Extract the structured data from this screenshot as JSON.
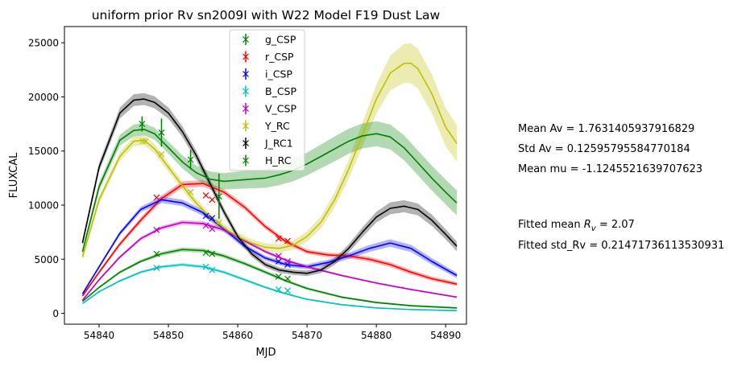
{
  "chart_data": {
    "type": "line",
    "title": "uniform prior Rv sn2009I with W22 Model F19 Dust Law",
    "xlabel": "MJD",
    "ylabel": "FLUXCAL",
    "xlim": [
      54835,
      54893
    ],
    "ylim": [
      -1000,
      26500
    ],
    "xticks": [
      54840,
      54850,
      54860,
      54870,
      54880,
      54890
    ],
    "yticks": [
      0,
      5000,
      10000,
      15000,
      20000,
      25000
    ],
    "grid": false,
    "legend_position": "top-center",
    "legend": [
      {
        "label": "g_CSP",
        "color": "#008000"
      },
      {
        "label": "r_CSP",
        "color": "#ff0000"
      },
      {
        "label": "i_CSP",
        "color": "#0000ff"
      },
      {
        "label": "B_CSP",
        "color": "#00bfbf"
      },
      {
        "label": "V_CSP",
        "color": "#bf00bf"
      },
      {
        "label": "Y_RC",
        "color": "#bfbf00"
      },
      {
        "label": "J_RC1",
        "color": "#000000"
      },
      {
        "label": "H_RC",
        "color": "#008000"
      }
    ],
    "series": [
      {
        "name": "g_CSP",
        "color": "#008000",
        "x": [
          54837.6,
          54840,
          54843,
          54846,
          54849,
          54852,
          54855,
          54858,
          54861,
          54864,
          54867,
          54870,
          54875,
          54880,
          54885,
          54891.6
        ],
        "y": [
          1100,
          2400,
          3800,
          4800,
          5500,
          5900,
          5800,
          5300,
          4600,
          3800,
          3000,
          2300,
          1500,
          1000,
          700,
          500
        ],
        "band": [
          80,
          100,
          120,
          150,
          180,
          200,
          200,
          200,
          180,
          160,
          140,
          120,
          100,
          90,
          80,
          80
        ],
        "obs_x": [
          54848.3,
          54855.4,
          54856.3,
          54865.9,
          54867.2
        ],
        "obs_y": [
          5500,
          5600,
          5500,
          3400,
          3200
        ]
      },
      {
        "name": "r_CSP",
        "color": "#ff0000",
        "x": [
          54837.6,
          54840,
          54843,
          54846,
          54849,
          54852,
          54855,
          54858,
          54861,
          54864,
          54867,
          54870,
          54873,
          54876,
          54879,
          54882,
          54885,
          54888,
          54891.6
        ],
        "y": [
          1600,
          3800,
          6400,
          8600,
          10600,
          11900,
          12000,
          11200,
          9800,
          8000,
          6600,
          5700,
          5400,
          5300,
          5000,
          4500,
          3800,
          3200,
          2700
        ],
        "band": [
          120,
          150,
          200,
          250,
          300,
          300,
          300,
          280,
          260,
          240,
          220,
          210,
          210,
          220,
          230,
          230,
          220,
          200,
          180
        ],
        "obs_x": [
          54848.3,
          54855.4,
          54856.3,
          54865.9,
          54867.2
        ],
        "obs_y": [
          10700,
          10900,
          10500,
          6900,
          6700
        ]
      },
      {
        "name": "i_CSP",
        "color": "#0000ff",
        "x": [
          54837.6,
          54840,
          54843,
          54846,
          54849,
          54852,
          54855,
          54858,
          54861,
          54864,
          54867,
          54870,
          54873,
          54876,
          54879,
          54882,
          54885,
          54888,
          54891.6
        ],
        "y": [
          1800,
          4300,
          7400,
          9600,
          10500,
          10200,
          9300,
          7800,
          6200,
          5100,
          4500,
          4300,
          4700,
          5300,
          6000,
          6500,
          6000,
          4800,
          3500
        ],
        "band": [
          120,
          150,
          200,
          250,
          300,
          300,
          280,
          260,
          240,
          220,
          220,
          230,
          250,
          280,
          320,
          350,
          330,
          300,
          250
        ],
        "obs_x": [
          54855.4,
          54856.3,
          54865.9,
          54867.2
        ],
        "obs_y": [
          9000,
          8800,
          4800,
          4500
        ]
      },
      {
        "name": "B_CSP",
        "color": "#00bfbf",
        "x": [
          54837.6,
          54840,
          54843,
          54846,
          54849,
          54852,
          54855,
          54858,
          54861,
          54864,
          54867,
          54870,
          54875,
          54880,
          54885,
          54891.6
        ],
        "y": [
          900,
          2000,
          3000,
          3800,
          4300,
          4500,
          4300,
          3800,
          3100,
          2400,
          1800,
          1300,
          800,
          500,
          350,
          250
        ],
        "band": [
          60,
          80,
          100,
          120,
          140,
          160,
          160,
          150,
          130,
          110,
          90,
          80,
          70,
          60,
          50,
          50
        ],
        "obs_x": [
          54848.3,
          54855.4,
          54856.3,
          54865.9,
          54867.2
        ],
        "obs_y": [
          4200,
          4300,
          4000,
          2200,
          2100
        ]
      },
      {
        "name": "V_CSP",
        "color": "#bf00bf",
        "x": [
          54837.6,
          54840,
          54843,
          54846,
          54849,
          54852,
          54855,
          54858,
          54861,
          54864,
          54867,
          54870,
          54875,
          54880,
          54885,
          54891.6
        ],
        "y": [
          1200,
          3100,
          5200,
          6900,
          7900,
          8400,
          8300,
          7700,
          6700,
          5700,
          4900,
          4300,
          3500,
          2800,
          2200,
          1500
        ],
        "band": [
          80,
          100,
          130,
          160,
          190,
          210,
          210,
          200,
          180,
          160,
          140,
          120,
          100,
          90,
          80,
          70
        ],
        "obs_x": [
          54848.3,
          54855.4,
          54856.3,
          54865.9,
          54867.2
        ],
        "obs_y": [
          7700,
          8100,
          7800,
          5300,
          4800
        ]
      },
      {
        "name": "Y_RC",
        "color": "#bfbf00",
        "x": [
          54837.6,
          54840,
          54843,
          54845,
          54846.5,
          54848,
          54850,
          54852,
          54854,
          54856,
          54858,
          54860,
          54862,
          54864,
          54866,
          54868,
          54870,
          54872,
          54874,
          54876,
          54878,
          54880,
          54882,
          54884,
          54885,
          54886,
          54888,
          54890,
          54891.6
        ],
        "y": [
          5200,
          10500,
          14500,
          15900,
          16000,
          15200,
          13500,
          11800,
          10200,
          8900,
          7900,
          7100,
          6500,
          6100,
          6000,
          6300,
          7100,
          8400,
          10500,
          13300,
          16500,
          19800,
          22200,
          23100,
          23100,
          22600,
          20300,
          17200,
          15700
        ],
        "band": [
          300,
          350,
          400,
          450,
          450,
          450,
          420,
          400,
          380,
          360,
          350,
          350,
          350,
          360,
          380,
          420,
          480,
          560,
          700,
          900,
          1100,
          1350,
          1600,
          1800,
          1850,
          1850,
          1800,
          1750,
          1700
        ],
        "obs_x": [
          54846.3,
          54846.7,
          54849,
          54853.2,
          54857.3
        ],
        "obs_y": [
          15900,
          15900,
          14700,
          11200,
          8400
        ]
      },
      {
        "name": "J_RC1",
        "color": "#000000",
        "x": [
          54837.6,
          54840,
          54843,
          54845,
          54846.5,
          54848,
          54850,
          54852,
          54854,
          54856,
          54858,
          54860,
          54862,
          54864,
          54866,
          54868,
          54870,
          54872,
          54874,
          54876,
          54878,
          54880,
          54882,
          54884,
          54886,
          54888,
          54890,
          54891.6
        ],
        "y": [
          6500,
          13500,
          18500,
          19700,
          19800,
          19500,
          18500,
          16800,
          14600,
          12000,
          9400,
          7100,
          5500,
          4500,
          4000,
          3800,
          3700,
          4000,
          4800,
          6000,
          7500,
          8900,
          9700,
          9900,
          9600,
          8600,
          7300,
          6200
        ],
        "band": [
          300,
          400,
          500,
          550,
          550,
          550,
          520,
          500,
          450,
          400,
          350,
          300,
          280,
          260,
          250,
          250,
          260,
          280,
          320,
          380,
          450,
          500,
          550,
          560,
          550,
          520,
          480,
          450
        ],
        "obs_x": [],
        "obs_y": []
      },
      {
        "name": "H_RC",
        "color": "#008000",
        "x": [
          54837.6,
          54840,
          54843,
          54845,
          54846.5,
          54848,
          54850,
          54852,
          54854,
          54856,
          54858,
          54860,
          54862,
          54864,
          54866,
          54868,
          54870,
          54872,
          54874,
          54876,
          54878,
          54880,
          54882,
          54884,
          54886,
          54888,
          54890,
          54891.6
        ],
        "y": [
          5700,
          11700,
          16000,
          16900,
          17000,
          16600,
          15300,
          14000,
          13000,
          12400,
          12200,
          12300,
          12400,
          12500,
          12800,
          13200,
          13800,
          14500,
          15200,
          15900,
          16400,
          16600,
          16300,
          15300,
          13900,
          12500,
          11200,
          10200
        ],
        "band": [
          300,
          400,
          500,
          550,
          550,
          550,
          550,
          600,
          650,
          700,
          750,
          800,
          850,
          900,
          950,
          1000,
          1050,
          1100,
          1150,
          1150,
          1150,
          1150,
          1150,
          1150,
          1150,
          1150,
          1150,
          1150
        ],
        "obs_x": [
          54846.2,
          54849,
          54853.2,
          54857.3
        ],
        "obs_y": [
          17500,
          16700,
          14200,
          10800
        ],
        "obs_err": [
          700,
          1300,
          900,
          2100
        ]
      }
    ]
  },
  "stats": {
    "mean_av": "Mean Av = 1.7631405937916829",
    "std_av": "Std Av = 0.12595795584770184",
    "mean_mu": "Mean mu = -1.1245521639707623",
    "fitted_rv_prefix": "Fitted mean ",
    "fitted_rv_symbol": "R",
    "fitted_rv_sub": "v",
    "fitted_rv_suffix": " =  2.07",
    "fitted_std_rv": "Fitted std_Rv = 0.21471736113530931"
  }
}
